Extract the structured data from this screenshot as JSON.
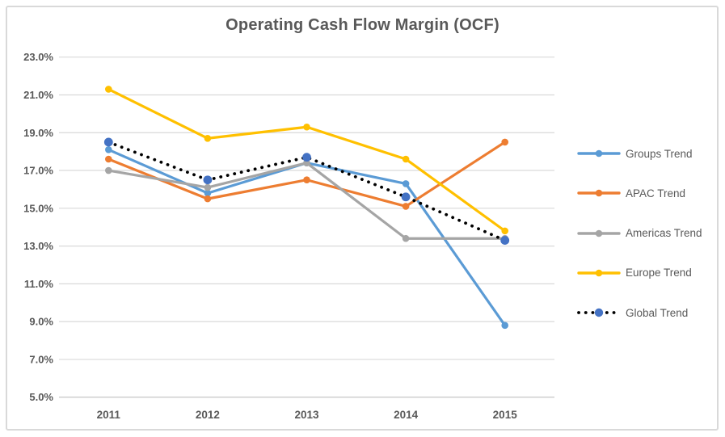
{
  "chart_data": {
    "type": "line",
    "title": "Operating Cash Flow Margin (OCF)",
    "categories": [
      "2011",
      "2012",
      "2013",
      "2014",
      "2015"
    ],
    "series": [
      {
        "name": "Groups Trend",
        "color": "#5B9BD5",
        "style": "solid",
        "marker": "circle",
        "values": [
          18.1,
          15.8,
          17.4,
          16.3,
          8.8
        ]
      },
      {
        "name": "APAC Trend",
        "color": "#ED7D31",
        "style": "solid",
        "marker": "circle",
        "values": [
          17.6,
          15.5,
          16.5,
          15.1,
          18.5
        ]
      },
      {
        "name": "Americas Trend",
        "color": "#A5A5A5",
        "style": "solid",
        "marker": "circle",
        "values": [
          17.0,
          16.1,
          17.4,
          13.4,
          13.4
        ]
      },
      {
        "name": "Europe Trend",
        "color": "#FFC000",
        "style": "solid",
        "marker": "circle",
        "values": [
          21.3,
          18.7,
          19.3,
          17.6,
          13.8
        ]
      },
      {
        "name": "Global Trend",
        "color": "#000000",
        "style": "dotted",
        "marker": "circle",
        "marker_color": "#4472C4",
        "values": [
          18.5,
          16.5,
          17.7,
          15.6,
          13.3
        ]
      }
    ],
    "y_axis": {
      "min": 5.0,
      "max": 23.0,
      "step": 2.0,
      "tick_values": [
        23,
        21,
        19,
        17,
        15,
        13,
        11,
        9,
        7,
        5
      ],
      "tick_labels": [
        "23.0%",
        "21.0%",
        "19.0%",
        "17.0%",
        "15.0%",
        "13.0%",
        "11.0%",
        "9.0%",
        "7.0%",
        "5.0%"
      ]
    },
    "grid": true,
    "legend_position": "right"
  },
  "colors": {
    "title_text": "#595959",
    "axis_text": "#595959",
    "gridline": "#D9D9D9",
    "axis_line": "#BFBFBF",
    "frame_border": "#D9D9D9",
    "background": "#FFFFFF",
    "global_marker_blue": "#4472C4"
  }
}
